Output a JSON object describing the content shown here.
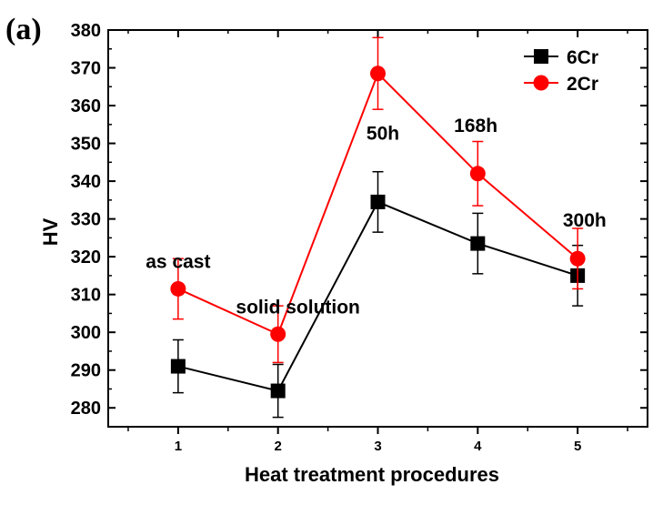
{
  "panel_label": "(a)",
  "chart_data": {
    "type": "line",
    "xlabel": "Heat treatment procedures",
    "ylabel": "HV",
    "x": [
      1,
      2,
      3,
      4,
      5
    ],
    "xlim": [
      0.3,
      5.7
    ],
    "ylim": [
      275,
      380
    ],
    "yticks": [
      280,
      290,
      300,
      310,
      320,
      330,
      340,
      350,
      360,
      370,
      380
    ],
    "grid": false,
    "legend_position": "top-right",
    "series": [
      {
        "name": "6Cr",
        "color": "#000000",
        "marker": "square",
        "values": [
          291,
          284.5,
          334.5,
          323.5,
          315
        ],
        "error": [
          7,
          7,
          8,
          8,
          8
        ]
      },
      {
        "name": "2Cr",
        "color": "#ff0000",
        "marker": "circle",
        "values": [
          311.5,
          299.5,
          368.5,
          342,
          319.5
        ],
        "error": [
          8,
          7.5,
          9.5,
          8.5,
          8
        ]
      }
    ],
    "annotations": [
      {
        "text": "as cast",
        "x": 1,
        "y": 317
      },
      {
        "text": "solid solution",
        "x": 2.2,
        "y": 305
      },
      {
        "text": "50h",
        "x": 3.05,
        "y": 351
      },
      {
        "text": "168h",
        "x": 3.98,
        "y": 353
      },
      {
        "text": "300h",
        "x": 5.07,
        "y": 328
      }
    ]
  }
}
